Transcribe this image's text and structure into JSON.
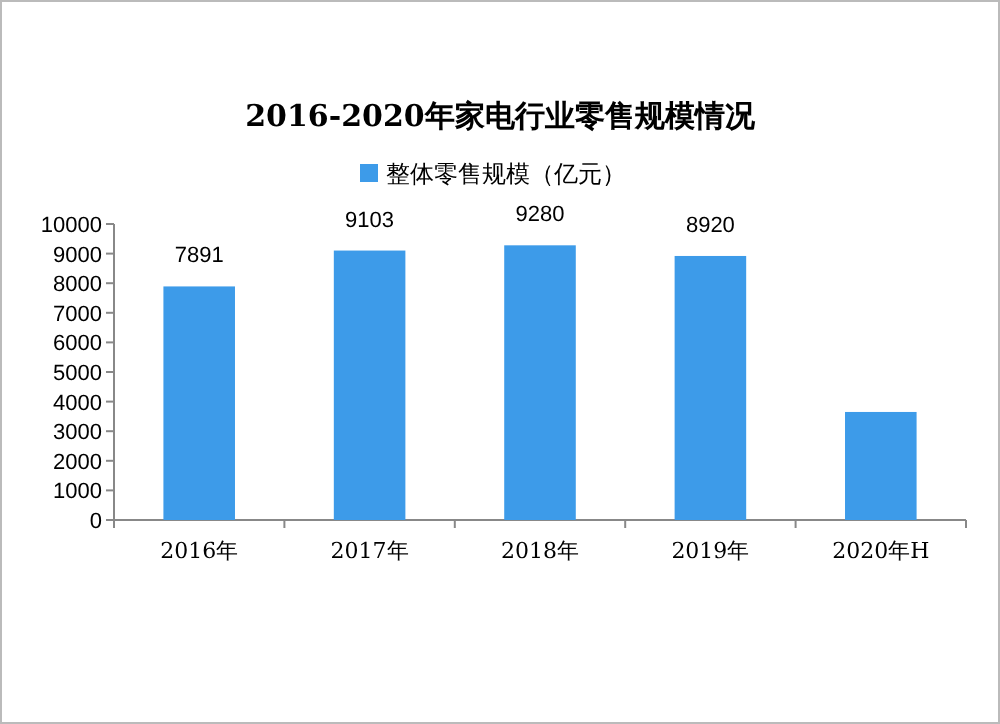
{
  "chart_data": {
    "type": "bar",
    "title": "2016-2020年家电行业零售规模情况",
    "categories": [
      "2016年",
      "2017年",
      "2018年",
      "2019年",
      "2020年H"
    ],
    "series": [
      {
        "name": "整体零售规模（亿元）",
        "color": "#3d9be9",
        "values": [
          7891,
          9103,
          9280,
          8920,
          3650
        ],
        "value_labels": [
          "7891",
          "9103",
          "9280",
          "8920",
          null
        ]
      }
    ],
    "ylim": [
      0,
      10000
    ],
    "yticks": [
      0,
      1000,
      2000,
      3000,
      4000,
      5000,
      6000,
      7000,
      8000,
      9000,
      10000
    ],
    "legend": "top",
    "grid": false
  }
}
